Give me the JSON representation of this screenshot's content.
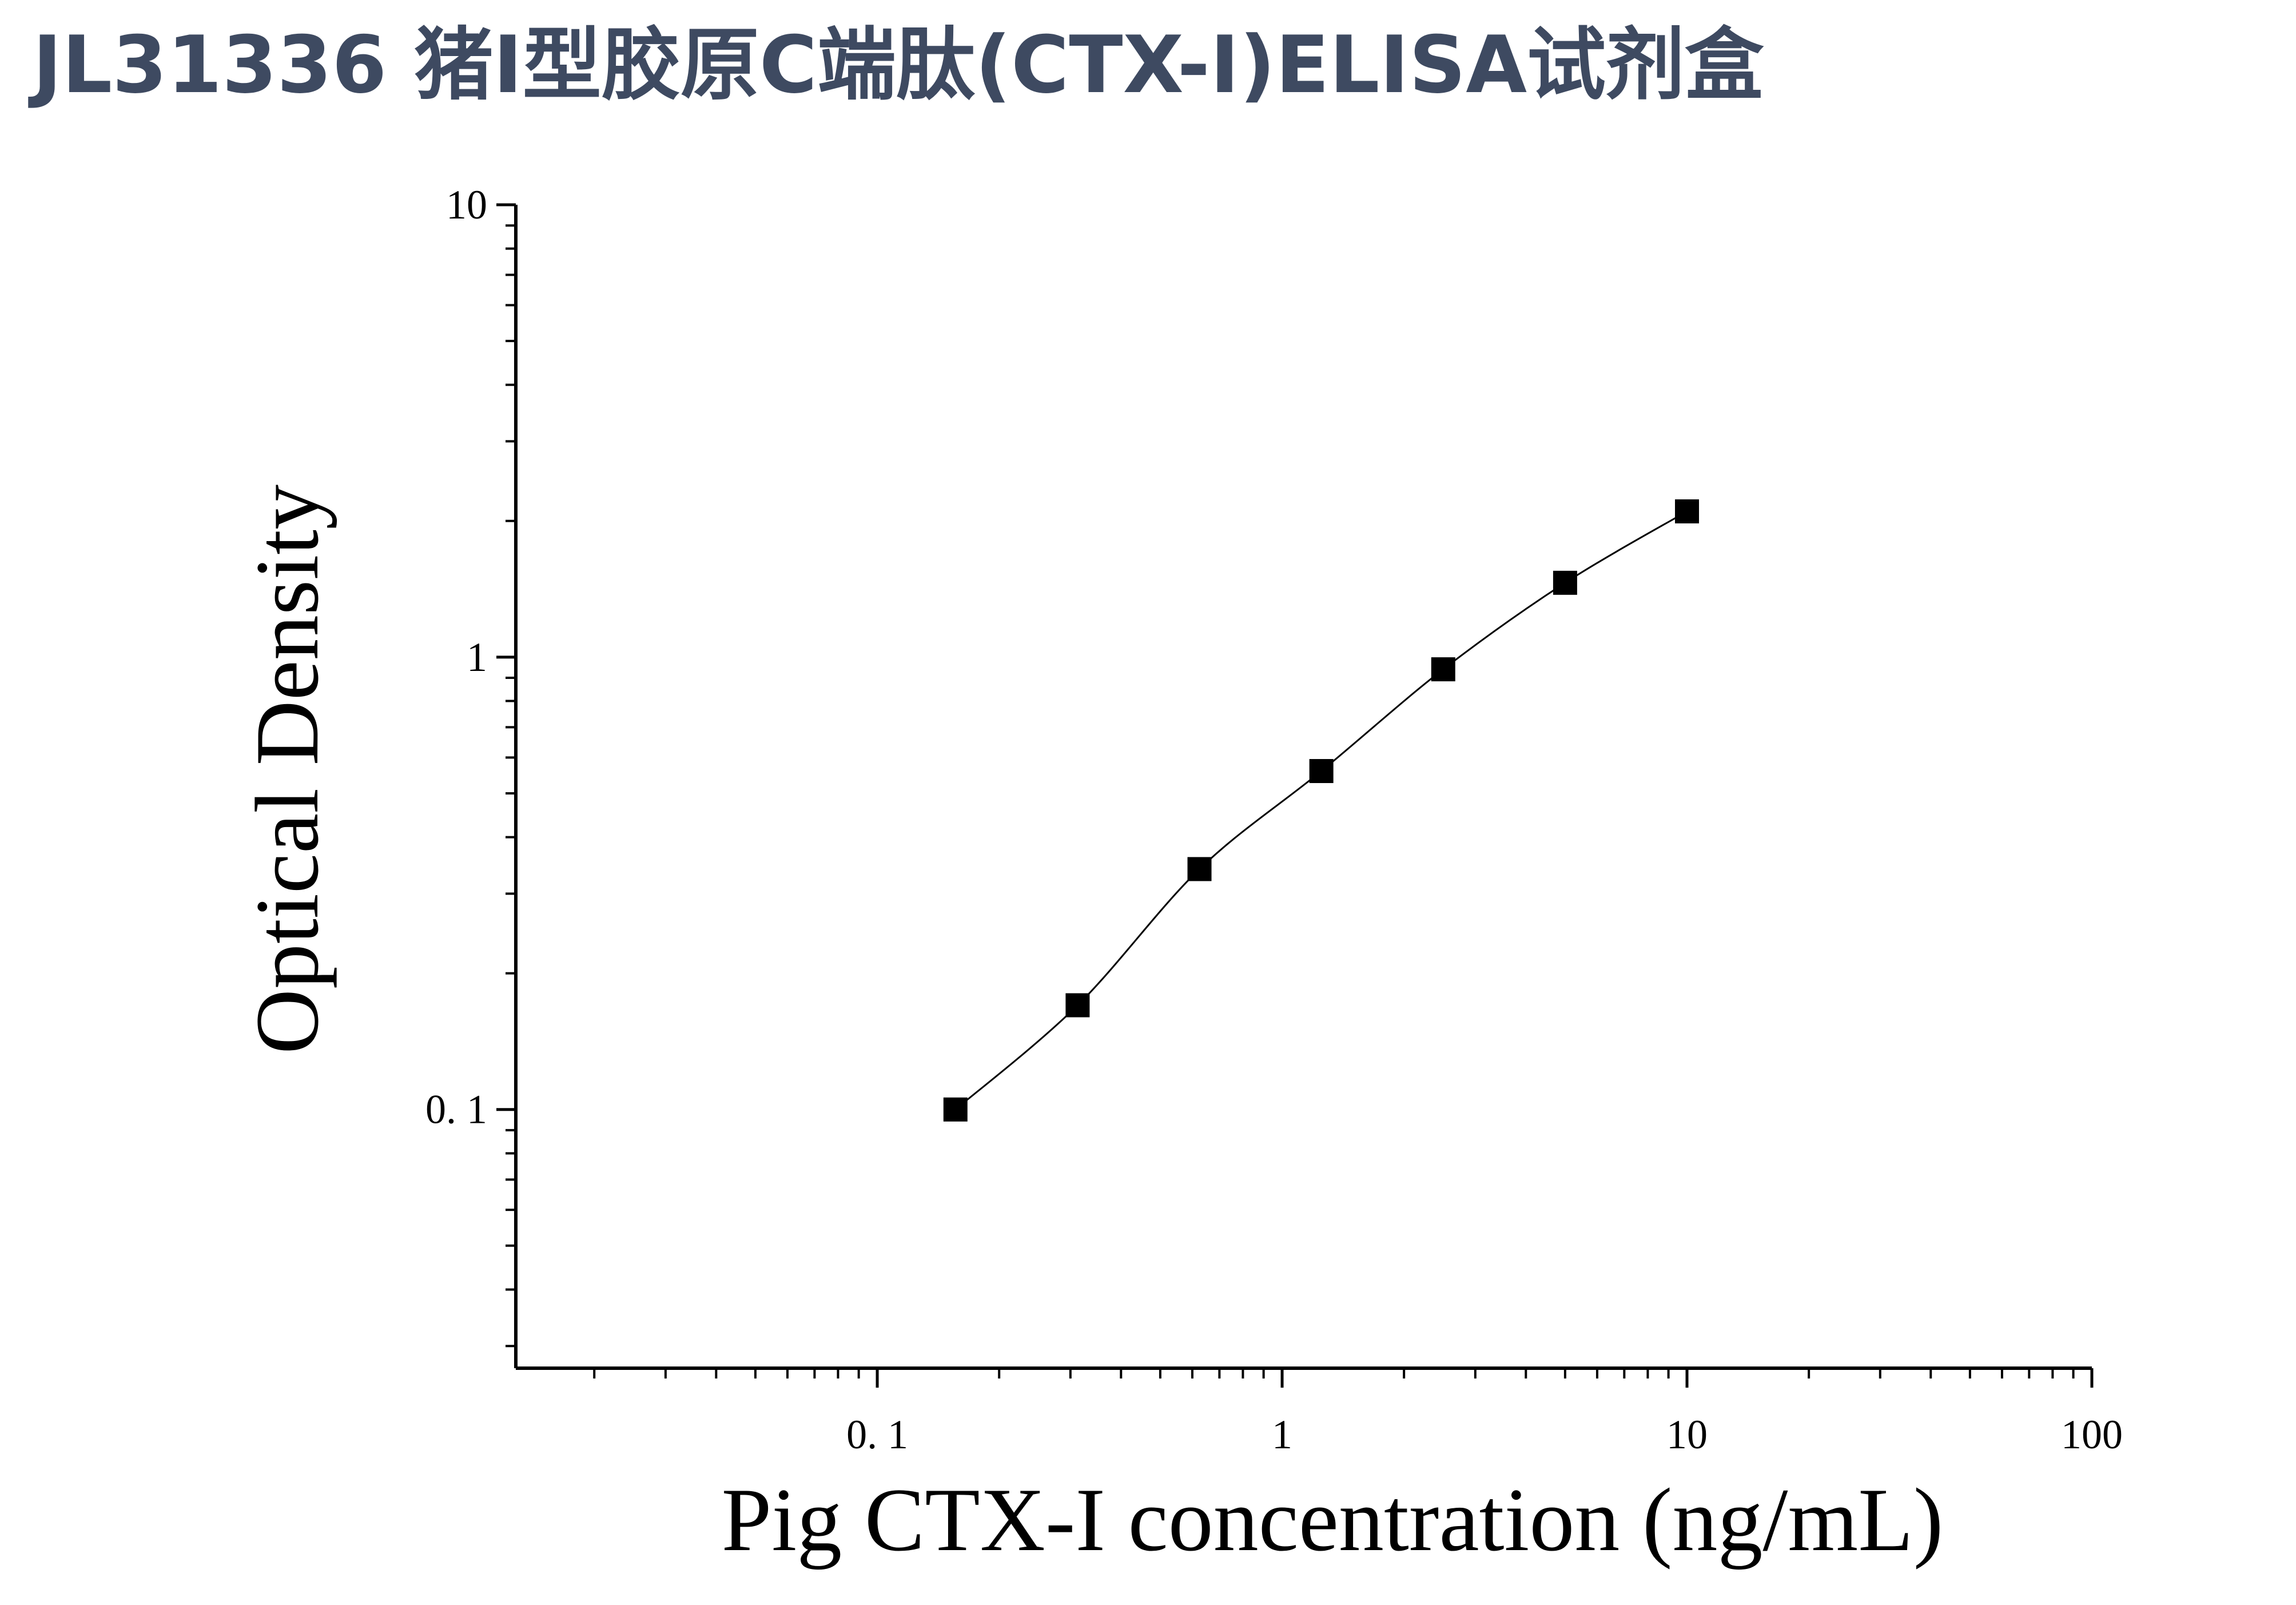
{
  "title": "JL31336 猪Ⅰ型胶原C端肽(CTX-Ⅰ)ELISA试剂盒",
  "chart_data": {
    "type": "scatter",
    "xlabel": "Pig CTX-I concentration (ng/mL)",
    "ylabel": "Optical Density",
    "x_scale": "log",
    "y_scale": "log",
    "xlim": [
      0.0128,
      100
    ],
    "ylim": [
      0.0268,
      10
    ],
    "x_ticks": [
      {
        "value": 0.1,
        "label": "0. 1"
      },
      {
        "value": 1,
        "label": "1"
      },
      {
        "value": 10,
        "label": "10"
      },
      {
        "value": 100,
        "label": "100"
      }
    ],
    "y_ticks": [
      {
        "value": 0.1,
        "label": "0. 1"
      },
      {
        "value": 1,
        "label": "1"
      },
      {
        "value": 10,
        "label": "10"
      }
    ],
    "grid": false,
    "marker": "square",
    "fit_line": true,
    "series": [
      {
        "x": [
          0.156,
          0.3125,
          0.625,
          1.25,
          2.5,
          5,
          10
        ],
        "y": [
          0.1,
          0.17,
          0.34,
          0.56,
          0.94,
          1.46,
          2.1
        ]
      }
    ]
  },
  "colors": {
    "title": "#3e4a61",
    "axis": "#000000",
    "marker": "#000000"
  }
}
